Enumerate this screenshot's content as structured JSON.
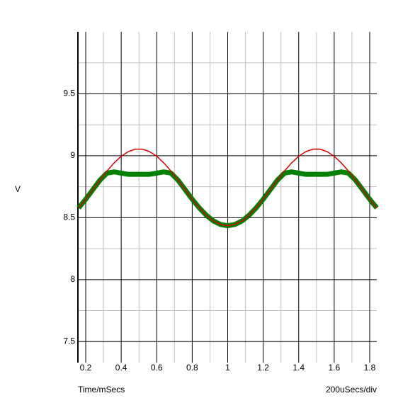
{
  "chart_data": {
    "type": "line",
    "ylabel": "V",
    "xlabel": "Time/mSecs",
    "scale_note": "200uSecs/div",
    "x": [
      0.16,
      0.2,
      0.24,
      0.28,
      0.32,
      0.36,
      0.4,
      0.44,
      0.48,
      0.52,
      0.56,
      0.6,
      0.64,
      0.68,
      0.72,
      0.76,
      0.8,
      0.84,
      0.88,
      0.92,
      0.96,
      1.0,
      1.04,
      1.08,
      1.12,
      1.16,
      1.2,
      1.24,
      1.28,
      1.32,
      1.36,
      1.4,
      1.44,
      1.48,
      1.52,
      1.56,
      1.6,
      1.64,
      1.68,
      1.72,
      1.76,
      1.8,
      1.84
    ],
    "series": [
      {
        "color": "#e00000",
        "width": 1.5,
        "values": [
          8.579,
          8.649,
          8.726,
          8.803,
          8.877,
          8.942,
          8.996,
          9.033,
          9.053,
          9.053,
          9.033,
          8.996,
          8.942,
          8.877,
          8.803,
          8.726,
          8.649,
          8.579,
          8.519,
          8.473,
          8.445,
          8.435,
          8.445,
          8.473,
          8.519,
          8.579,
          8.649,
          8.726,
          8.803,
          8.877,
          8.942,
          8.996,
          9.033,
          9.053,
          9.053,
          9.033,
          8.996,
          8.942,
          8.877,
          8.803,
          8.726,
          8.649,
          8.579
        ]
      },
      {
        "color": "#008000",
        "width": 7,
        "values": [
          8.579,
          8.649,
          8.726,
          8.803,
          8.86,
          8.87,
          8.86,
          8.85,
          8.85,
          8.85,
          8.85,
          8.86,
          8.87,
          8.86,
          8.803,
          8.726,
          8.649,
          8.579,
          8.519,
          8.473,
          8.445,
          8.435,
          8.445,
          8.473,
          8.519,
          8.579,
          8.649,
          8.726,
          8.803,
          8.86,
          8.87,
          8.86,
          8.85,
          8.85,
          8.85,
          8.85,
          8.86,
          8.87,
          8.86,
          8.803,
          8.726,
          8.649,
          8.579
        ]
      }
    ],
    "xlim": [
      0.156,
      1.84
    ],
    "ylim": [
      7.33,
      10
    ],
    "xticks": [
      0.2,
      0.4,
      0.6,
      0.8,
      1,
      1.2,
      1.4,
      1.6,
      1.8
    ],
    "yticks": [
      7.5,
      8,
      8.5,
      9,
      9.5
    ],
    "minor_xgrid": [
      0.3,
      0.5,
      0.7,
      0.9,
      1.1,
      1.3,
      1.5,
      1.7
    ],
    "minor_ygrid": [
      7.75,
      8.25,
      8.75,
      9.25,
      9.75
    ],
    "grid": true
  }
}
